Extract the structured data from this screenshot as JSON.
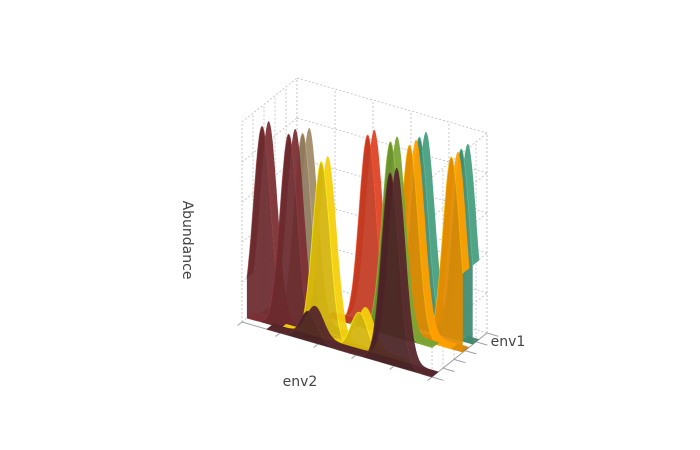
{
  "chart_data": {
    "type": "surface",
    "title": "",
    "xlabel": "env2",
    "ylabel": "env1",
    "zlabel": "Abundance",
    "xlim": [
      0,
      1
    ],
    "ylim": [
      0,
      1
    ],
    "zlim": [
      0,
      1
    ],
    "grid": true,
    "legend": "none",
    "note_units": "axes show no tick labels; all values relative (0-1)",
    "series": [
      {
        "color": "#3f8a6f",
        "x_peak": 0.94,
        "y_center": 0.8,
        "peak": 0.96
      },
      {
        "color": "#3f8a6f",
        "x_peak": 0.72,
        "y_center": 0.8,
        "peak": 0.96
      },
      {
        "color": "#e08a00",
        "x_peak": 0.94,
        "y_center": 0.62,
        "peak": 0.96
      },
      {
        "color": "#e08a00",
        "x_peak": 0.72,
        "y_center": 0.62,
        "peak": 0.96
      },
      {
        "color": "#c23a20",
        "x_peak": 0.52,
        "y_center": 0.55,
        "peak": 0.97
      },
      {
        "color": "#6b8f2e",
        "x_peak": 0.64,
        "y_center": 0.55,
        "peak": 0.97
      },
      {
        "color": "#8c7a5c",
        "x_peak": 0.25,
        "y_center": 0.3,
        "peak": 0.96
      },
      {
        "color": "#6b2a2e",
        "x_peak": 0.08,
        "y_center": 0.15,
        "peak": 0.98
      },
      {
        "color": "#6b2a2e",
        "x_peak": 0.22,
        "y_center": 0.15,
        "peak": 0.98
      },
      {
        "color": "#d4b40c",
        "x_peak": 0.4,
        "y_center": 0.12,
        "peak": 0.9
      },
      {
        "color": "#d4b40c",
        "x_peak": 0.6,
        "y_center": 0.12,
        "peak": 0.2
      },
      {
        "color": "#4a2226",
        "x_peak": 0.78,
        "y_center": 0.06,
        "peak": 0.96
      },
      {
        "color": "#4a2226",
        "x_peak": 0.35,
        "y_center": 0.06,
        "peak": 0.15
      }
    ]
  }
}
